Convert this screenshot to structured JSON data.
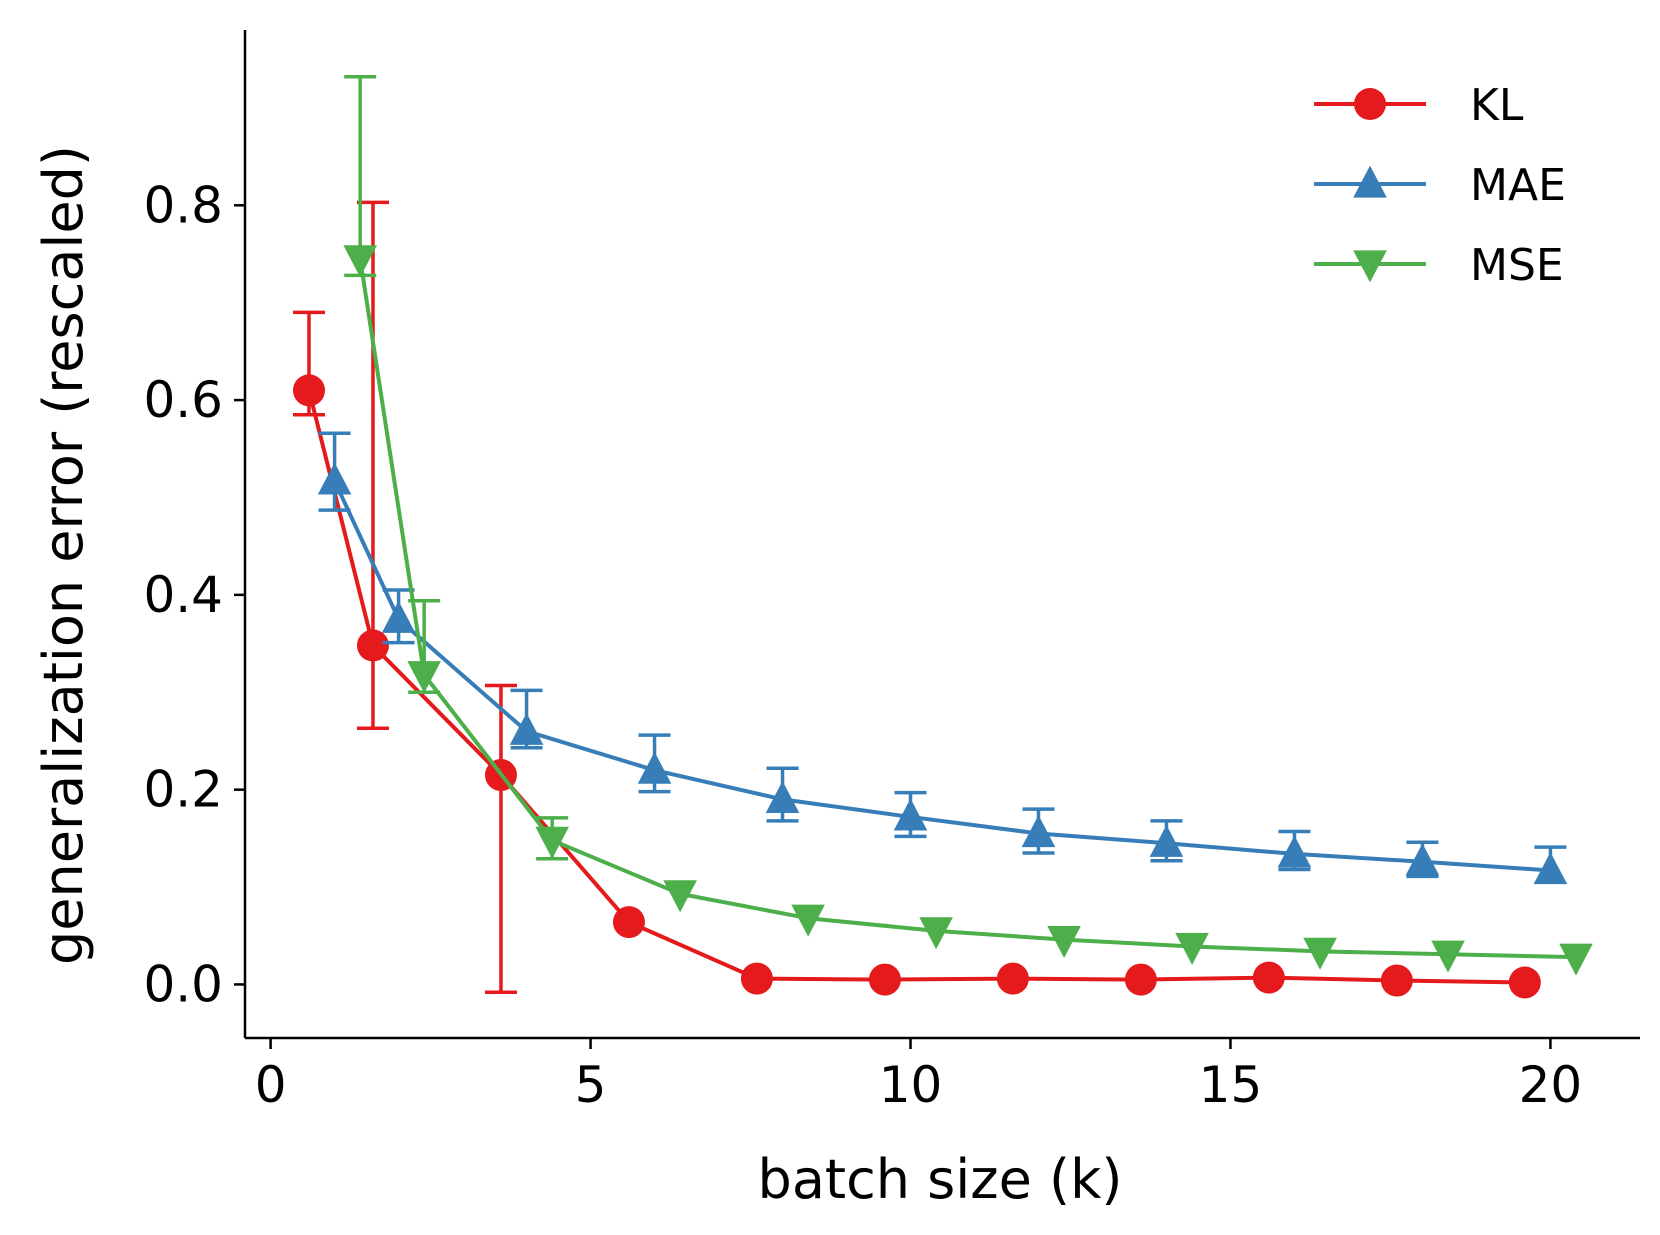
{
  "chart_data": {
    "type": "line",
    "title": "",
    "xlabel": "batch size (k)",
    "ylabel": "generalization error (rescaled)",
    "xlim": [
      -0.4,
      21.4
    ],
    "ylim": [
      -0.055,
      0.98
    ],
    "xticks": [
      0,
      5,
      10,
      15,
      20
    ],
    "yticks": [
      0.0,
      0.2,
      0.4,
      0.6,
      0.8
    ],
    "xtick_labels": [
      "0",
      "5",
      "10",
      "15",
      "20"
    ],
    "ytick_labels": [
      "0.0",
      "0.2",
      "0.4",
      "0.6",
      "0.8"
    ],
    "legend_position": "top-right",
    "grid": false,
    "series": [
      {
        "name": "KL",
        "color": "#e41a1c",
        "marker": "circle",
        "x": [
          0.6,
          1.6,
          3.6,
          5.6,
          7.6,
          9.6,
          11.6,
          13.6,
          15.6,
          17.6,
          19.6
        ],
        "y": [
          0.61,
          0.348,
          0.215,
          0.064,
          0.006,
          0.005,
          0.006,
          0.005,
          0.007,
          0.004,
          0.002
        ],
        "err_low": [
          0.585,
          0.263,
          -0.008,
          null,
          null,
          null,
          null,
          null,
          null,
          null,
          null
        ],
        "err_high": [
          0.69,
          0.803,
          0.307,
          null,
          null,
          null,
          null,
          null,
          null,
          null,
          null
        ]
      },
      {
        "name": "MAE",
        "color": "#377eb8",
        "marker": "triangle-up",
        "x": [
          1.0,
          2.0,
          4.0,
          6.0,
          8.0,
          10.0,
          12.0,
          14.0,
          16.0,
          18.0,
          20.0
        ],
        "y": [
          0.517,
          0.375,
          0.26,
          0.22,
          0.19,
          0.172,
          0.155,
          0.145,
          0.134,
          0.126,
          0.117
        ],
        "err_low": [
          0.487,
          0.351,
          0.243,
          0.198,
          0.168,
          0.152,
          0.135,
          0.127,
          0.118,
          0.111,
          null
        ],
        "err_high": [
          0.566,
          0.405,
          0.302,
          0.256,
          0.222,
          0.197,
          0.18,
          0.168,
          0.157,
          0.146,
          0.141
        ]
      },
      {
        "name": "MSE",
        "color": "#4daf4a",
        "marker": "triangle-down",
        "x": [
          1.4,
          2.4,
          4.4,
          6.4,
          8.4,
          10.4,
          12.4,
          14.4,
          16.4,
          18.4,
          20.4
        ],
        "y": [
          0.745,
          0.318,
          0.148,
          0.093,
          0.068,
          0.055,
          0.046,
          0.039,
          0.034,
          0.031,
          0.028
        ],
        "err_low": [
          0.728,
          0.3,
          0.129,
          null,
          null,
          null,
          null,
          null,
          null,
          null,
          null
        ],
        "err_high": [
          0.932,
          0.394,
          0.171,
          null,
          null,
          null,
          null,
          null,
          null,
          null,
          null
        ]
      }
    ]
  }
}
